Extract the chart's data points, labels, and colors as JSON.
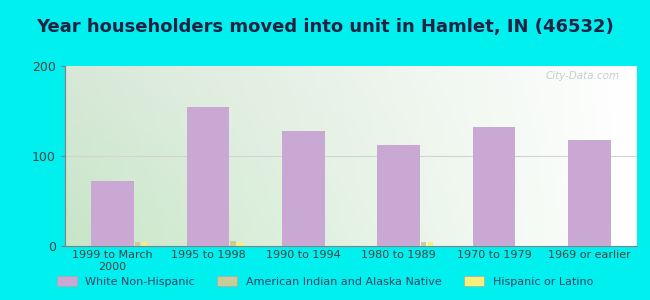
{
  "title": "Year householders moved into unit in Hamlet, IN (46532)",
  "categories": [
    "1999 to March\n2000",
    "1995 to 1998",
    "1990 to 1994",
    "1980 to 1989",
    "1970 to 1979",
    "1969 or earlier"
  ],
  "white_non_hispanic": [
    72,
    155,
    128,
    112,
    132,
    118
  ],
  "american_indian": [
    5,
    6,
    0,
    5,
    0,
    0
  ],
  "hispanic": [
    4,
    5,
    0,
    4,
    0,
    0
  ],
  "white_color": "#c9a8d4",
  "american_indian_color": "#c8cc99",
  "hispanic_color": "#f5f07a",
  "ylim": [
    0,
    200
  ],
  "yticks": [
    0,
    100,
    200
  ],
  "background_color": "#00f0f0",
  "plot_bg_left": "#c8ddc0",
  "plot_bg_right": "#f5f5f5",
  "title_color": "#222244",
  "title_fontsize": 13,
  "bar_width": 0.45,
  "small_bar_width": 0.06,
  "legend_labels": [
    "White Non-Hispanic",
    "American Indian and Alaska Native",
    "Hispanic or Latino"
  ],
  "watermark": "City-Data.com",
  "watermark_color": "#bbcccc"
}
